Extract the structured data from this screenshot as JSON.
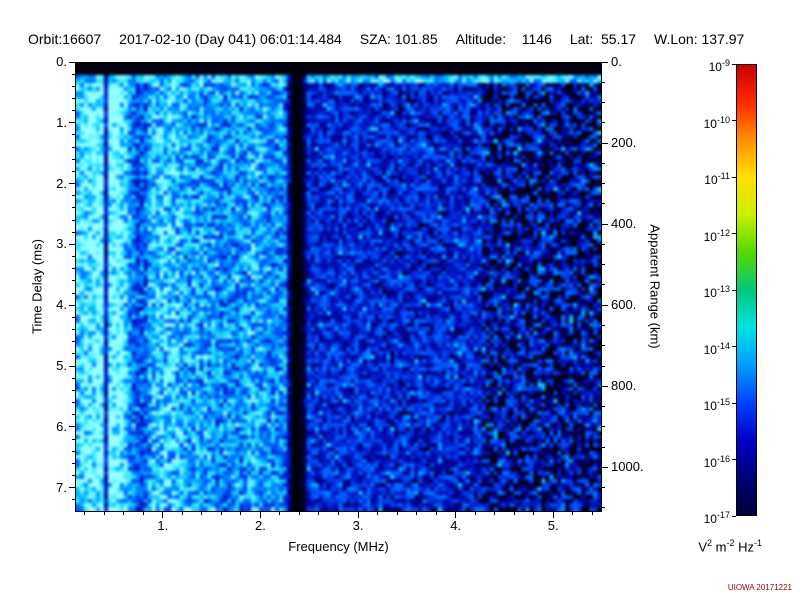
{
  "header": {
    "orbit": "Orbit:16607",
    "datetime": "2017-02-10 (Day 041) 06:01:14.484",
    "sza": "SZA: 101.85",
    "altitude": "Altitude:    1146",
    "lat": "Lat:  55.17",
    "wlon": "W.Lon: 137.97"
  },
  "footer": {
    "credit": "UIOWA 20171221"
  },
  "chart_data": {
    "type": "heatmap",
    "title": "",
    "description": "Orbital radar sounder ionogram: received spectral density (log color scale 1e-17 to 1e-9 V^2 m^-2 Hz^-1) versus frequency (0.1-5.5 MHz, x) and time delay (0-7.4 ms, y; equivalent apparent range 0-1110 km on right axis). Mostly blue noise speckle with cyan blobs; brighter region with strong vertical striations below ~0.9 MHz; solid black horizontal band across the top (~first 0.18 ms) with a bright speckled echo row just beneath it; dark attenuation columns near 0.40 MHz and 2.37 MHz; weaker signal with scattered black dropout patches above ~4.3 MHz.",
    "xlabel": "Frequency (MHz)",
    "x_range_mhz": [
      0.1,
      5.5
    ],
    "x_major_ticks": [
      1,
      2,
      3,
      4,
      5
    ],
    "x_tick_labels": [
      "1.",
      "2.",
      "3.",
      "4.",
      "5."
    ],
    "x_minor_step": 0.2,
    "ylabel_left": "Time Delay (ms)",
    "time_range_ms": [
      0,
      7.4
    ],
    "y_major_ticks_ms": [
      0,
      1,
      2,
      3,
      4,
      5,
      6,
      7
    ],
    "y_tick_labels": [
      "0.",
      "1.",
      "2.",
      "3.",
      "4.",
      "5.",
      "6.",
      "7."
    ],
    "y_minor_step_ms": 0.2,
    "ylabel_right": "Apparent Range (km)",
    "right_axis_range_km": [
      0,
      1110
    ],
    "right_axis_ticks_km": [
      0,
      200,
      400,
      600,
      800,
      1000
    ],
    "right_axis_tick_labels": [
      "0.",
      "200.",
      "400.",
      "600.",
      "800.",
      "1000."
    ],
    "right_axis_minor_step_km": 50,
    "colorbar": {
      "units_parts": [
        {
          "t": "V",
          "sup": "2"
        },
        {
          "t": " m",
          "sup": "-2"
        },
        {
          "t": " Hz",
          "sup": "-1"
        }
      ],
      "ticks": [
        {
          "base": "10",
          "exp": "-9"
        },
        {
          "base": "10",
          "exp": "-10"
        },
        {
          "base": "10",
          "exp": "-11"
        },
        {
          "base": "10",
          "exp": "-12"
        },
        {
          "base": "10",
          "exp": "-13"
        },
        {
          "base": "10",
          "exp": "-14"
        },
        {
          "base": "10",
          "exp": "-15"
        },
        {
          "base": "10",
          "exp": "-16"
        },
        {
          "base": "10",
          "exp": "-17"
        }
      ],
      "top_value_exp": -9,
      "bottom_value_exp": -17,
      "colors_top_to_bottom": [
        "#c80000",
        "#ff2a00",
        "#ff9100",
        "#ffe000",
        "#c8f000",
        "#55d800",
        "#00c87d",
        "#00e2e2",
        "#009dff",
        "#0043ff",
        "#0000c8",
        "#000078",
        "#000037"
      ]
    },
    "texture": {
      "seed": 20171221,
      "cols": 132,
      "rows": 112,
      "bright_region_max_mhz": 2.33,
      "stripe_region_max_mhz": 0.9,
      "gap_center_mhz": 2.37,
      "gap_halfwidth_mhz": 0.05,
      "dark_column_mhz": 0.4,
      "black_top_frac": 0.025,
      "echo_band_frac": 0.045,
      "dropout_min_mhz": 4.3
    }
  }
}
